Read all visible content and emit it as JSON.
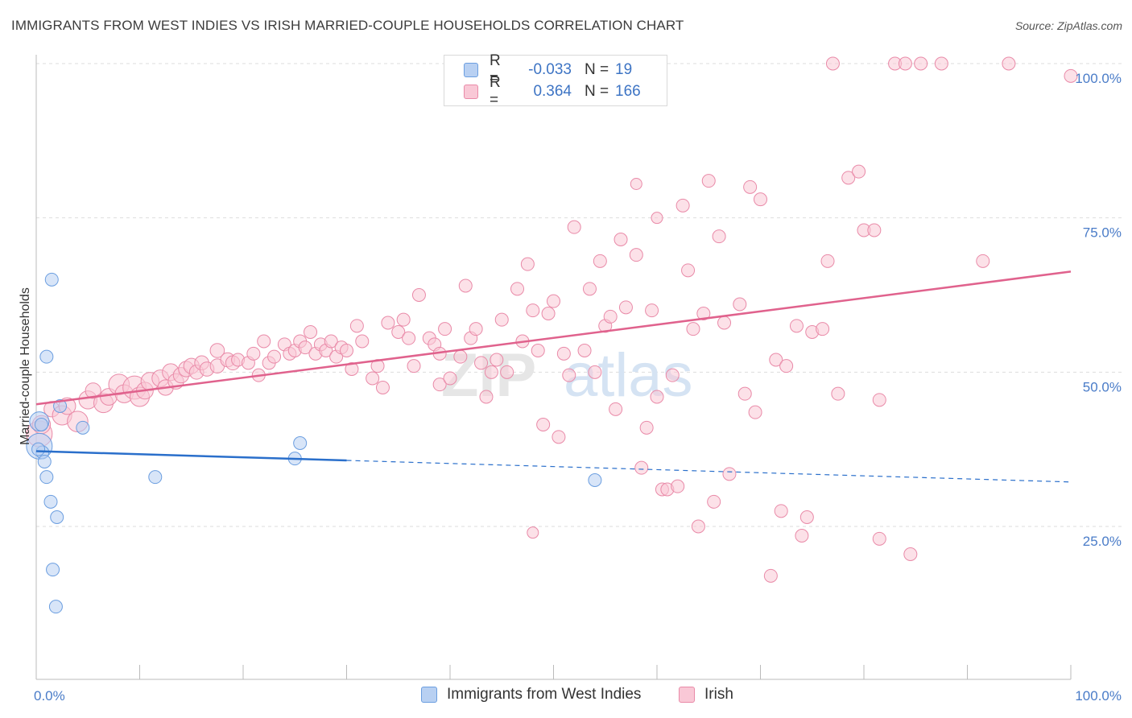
{
  "header": {
    "title": "IMMIGRANTS FROM WEST INDIES VS IRISH MARRIED-COUPLE HOUSEHOLDS CORRELATION CHART",
    "source": "Source: ZipAtlas.com"
  },
  "watermark": {
    "zip": "ZIP",
    "atlas": "atlas"
  },
  "legend_top": {
    "rows": [
      {
        "r_label": "R =",
        "r_value": "-0.033",
        "n_label": "N =",
        "n_value": "19"
      },
      {
        "r_label": "R =",
        "r_value": "0.364",
        "n_label": "N =",
        "n_value": "166"
      }
    ]
  },
  "legend_bottom": {
    "series1": "Immigrants from West Indies",
    "series2": "Irish"
  },
  "colors": {
    "blue_fill": "#b8d0f2",
    "blue_stroke": "#6b9ee0",
    "blue_line": "#2a6fcb",
    "pink_fill": "#f9c8d6",
    "pink_stroke": "#e98aa8",
    "pink_line": "#e0628d",
    "tick_text": "#4a7cc8",
    "grid": "#dddddd"
  },
  "chart_data": {
    "type": "scatter",
    "title": "IMMIGRANTS FROM WEST INDIES VS IRISH MARRIED-COUPLE HOUSEHOLDS CORRELATION CHART",
    "xlabel": "",
    "ylabel": "Married-couple Households",
    "xlim": [
      0,
      100
    ],
    "ylim": [
      0,
      105
    ],
    "x_tick_labels": [
      {
        "value": 0,
        "label": "0.0%"
      },
      {
        "value": 100,
        "label": "100.0%"
      }
    ],
    "y_tick_labels": [
      {
        "value": 25,
        "label": "25.0%"
      },
      {
        "value": 50,
        "label": "50.0%"
      },
      {
        "value": 75,
        "label": "75.0%"
      },
      {
        "value": 100,
        "label": "100.0%"
      }
    ],
    "series": [
      {
        "name": "Immigrants from West Indies",
        "r": -0.033,
        "n": 19,
        "trend": {
          "x_start": 0,
          "y_start": 37.2,
          "x_solid_end": 30,
          "x_end": 100,
          "y_end": 32.2
        },
        "points": [
          [
            0.3,
            38.0,
            2
          ],
          [
            0.3,
            42.0,
            1.5
          ],
          [
            0.5,
            41.5,
            1
          ],
          [
            0.6,
            37.0,
            1
          ],
          [
            0.8,
            35.5,
            1
          ],
          [
            1.0,
            33.0,
            1
          ],
          [
            1.4,
            29.0,
            1
          ],
          [
            1.0,
            52.5,
            1
          ],
          [
            1.5,
            65.0,
            1
          ],
          [
            1.6,
            18.0,
            1
          ],
          [
            2.0,
            26.5,
            1
          ],
          [
            1.9,
            12.0,
            1
          ],
          [
            2.3,
            44.5,
            1
          ],
          [
            4.5,
            41.0,
            1
          ],
          [
            11.5,
            33.0,
            1
          ],
          [
            25.0,
            36.0,
            1
          ],
          [
            25.5,
            38.5,
            1
          ],
          [
            54.0,
            32.5,
            1
          ],
          [
            0.2,
            37.5,
            1
          ]
        ]
      },
      {
        "name": "Irish",
        "r": 0.364,
        "n": 166,
        "trend": {
          "x_start": 0,
          "y_start": 44.8,
          "x_end": 100,
          "y_end": 66.3
        },
        "points": [
          [
            0.3,
            40.0,
            2
          ],
          [
            0.5,
            41.5,
            1.4
          ],
          [
            1.5,
            44.0,
            1.2
          ],
          [
            2.5,
            43.0,
            1.5
          ],
          [
            3.0,
            44.5,
            1.3
          ],
          [
            4.0,
            42.0,
            1.6
          ],
          [
            5.0,
            45.5,
            1.4
          ],
          [
            5.5,
            47.0,
            1.2
          ],
          [
            6.5,
            45.0,
            1.5
          ],
          [
            7.0,
            46.0,
            1.3
          ],
          [
            8.0,
            48.0,
            1.6
          ],
          [
            8.5,
            46.5,
            1.4
          ],
          [
            9.5,
            47.5,
            1.8
          ],
          [
            10.0,
            46.0,
            1.5
          ],
          [
            10.5,
            47.0,
            1.3
          ],
          [
            11.0,
            48.5,
            1.4
          ],
          [
            12.0,
            49.0,
            1.3
          ],
          [
            12.5,
            47.5,
            1.2
          ],
          [
            13.0,
            50.0,
            1.3
          ],
          [
            13.5,
            48.5,
            1.2
          ],
          [
            14.0,
            49.5,
            1.2
          ],
          [
            14.5,
            50.5,
            1.2
          ],
          [
            15.0,
            51.0,
            1.2
          ],
          [
            15.5,
            50.0,
            1.1
          ],
          [
            16.0,
            51.5,
            1.1
          ],
          [
            16.5,
            50.5,
            1.1
          ],
          [
            17.5,
            51.0,
            1.1
          ],
          [
            17.5,
            53.5,
            1.1
          ],
          [
            18.5,
            52.0,
            1.1
          ],
          [
            19.0,
            51.5,
            1.1
          ],
          [
            19.5,
            52.0,
            1
          ],
          [
            20.5,
            51.5,
            1
          ],
          [
            21.0,
            53.0,
            1
          ],
          [
            21.5,
            49.5,
            1
          ],
          [
            22.0,
            55.0,
            1
          ],
          [
            22.5,
            51.5,
            1
          ],
          [
            23.0,
            52.5,
            1
          ],
          [
            24.0,
            54.5,
            1
          ],
          [
            24.5,
            53.0,
            1
          ],
          [
            25.0,
            53.5,
            1
          ],
          [
            25.5,
            55.0,
            1
          ],
          [
            26.0,
            54.0,
            1
          ],
          [
            26.5,
            56.5,
            1
          ],
          [
            27.0,
            53.0,
            1
          ],
          [
            27.5,
            54.5,
            1
          ],
          [
            28.0,
            53.5,
            1
          ],
          [
            28.5,
            55.0,
            1
          ],
          [
            29.0,
            52.5,
            1
          ],
          [
            29.5,
            54.0,
            1
          ],
          [
            30.0,
            53.5,
            1
          ],
          [
            30.5,
            50.5,
            1
          ],
          [
            31.0,
            57.5,
            1
          ],
          [
            31.5,
            55.0,
            1
          ],
          [
            32.5,
            49.0,
            1
          ],
          [
            33.0,
            51.0,
            1
          ],
          [
            33.5,
            47.5,
            1
          ],
          [
            34.0,
            58.0,
            1
          ],
          [
            35.0,
            56.5,
            1
          ],
          [
            35.5,
            58.5,
            1
          ],
          [
            36.0,
            55.5,
            1
          ],
          [
            36.5,
            51.0,
            1
          ],
          [
            37.0,
            62.5,
            1
          ],
          [
            38.0,
            55.5,
            1
          ],
          [
            38.5,
            54.5,
            1
          ],
          [
            39.0,
            53.0,
            1
          ],
          [
            39.0,
            48.0,
            1
          ],
          [
            39.5,
            57.0,
            1
          ],
          [
            40.0,
            49.0,
            1
          ],
          [
            41.0,
            52.5,
            1
          ],
          [
            41.5,
            64.0,
            1
          ],
          [
            42.0,
            55.5,
            1
          ],
          [
            42.5,
            57.0,
            1
          ],
          [
            43.0,
            51.5,
            1
          ],
          [
            43.5,
            46.0,
            1
          ],
          [
            44.0,
            50.0,
            1
          ],
          [
            44.5,
            52.0,
            1
          ],
          [
            45.0,
            58.5,
            1
          ],
          [
            45.5,
            50.0,
            1
          ],
          [
            46.5,
            63.5,
            1
          ],
          [
            47.0,
            55.0,
            1
          ],
          [
            47.5,
            67.5,
            1
          ],
          [
            48.0,
            60.0,
            1
          ],
          [
            48.5,
            53.5,
            1
          ],
          [
            49.0,
            41.5,
            1
          ],
          [
            49.5,
            59.5,
            1
          ],
          [
            50.0,
            61.5,
            1
          ],
          [
            50.5,
            39.5,
            1
          ],
          [
            51.0,
            53.0,
            1
          ],
          [
            51.5,
            49.5,
            1
          ],
          [
            52.0,
            73.5,
            1
          ],
          [
            53.0,
            53.5,
            1
          ],
          [
            53.5,
            63.5,
            1
          ],
          [
            54.0,
            50.0,
            1
          ],
          [
            54.5,
            68.0,
            1
          ],
          [
            55.0,
            57.5,
            1
          ],
          [
            55.5,
            59.0,
            1
          ],
          [
            56.0,
            44.0,
            1
          ],
          [
            56.5,
            71.5,
            1
          ],
          [
            57.0,
            60.5,
            1
          ],
          [
            58.0,
            69.0,
            1
          ],
          [
            58.5,
            34.5,
            1
          ],
          [
            59.0,
            41.0,
            1
          ],
          [
            59.5,
            60.0,
            1
          ],
          [
            60.0,
            46.0,
            1
          ],
          [
            60.5,
            31.0,
            1
          ],
          [
            61.0,
            31.0,
            1
          ],
          [
            61.5,
            49.5,
            1
          ],
          [
            62.0,
            31.5,
            1
          ],
          [
            62.5,
            77.0,
            1
          ],
          [
            63.0,
            66.5,
            1
          ],
          [
            63.5,
            57.0,
            1
          ],
          [
            64.0,
            25.0,
            1
          ],
          [
            64.5,
            59.5,
            1
          ],
          [
            65.0,
            81.0,
            1
          ],
          [
            65.5,
            29.0,
            1
          ],
          [
            66.0,
            72.0,
            1
          ],
          [
            66.5,
            58.0,
            1
          ],
          [
            67.0,
            33.5,
            1
          ],
          [
            68.0,
            61.0,
            1
          ],
          [
            68.5,
            46.5,
            1
          ],
          [
            69.0,
            80.0,
            1
          ],
          [
            69.5,
            43.5,
            1
          ],
          [
            70.0,
            78.0,
            1
          ],
          [
            71.0,
            17.0,
            1
          ],
          [
            71.5,
            52.0,
            1
          ],
          [
            72.0,
            27.5,
            1
          ],
          [
            72.5,
            51.0,
            1
          ],
          [
            73.5,
            57.5,
            1
          ],
          [
            74.0,
            23.5,
            1
          ],
          [
            74.5,
            26.5,
            1
          ],
          [
            75.0,
            56.5,
            1
          ],
          [
            76.0,
            57.0,
            1
          ],
          [
            76.5,
            68.0,
            1
          ],
          [
            77.0,
            100.0,
            1
          ],
          [
            77.5,
            46.5,
            1
          ],
          [
            78.5,
            81.5,
            1
          ],
          [
            79.5,
            82.5,
            1
          ],
          [
            80.0,
            73.0,
            1
          ],
          [
            81.0,
            73.0,
            1
          ],
          [
            81.5,
            45.5,
            1
          ],
          [
            81.5,
            23.0,
            1
          ],
          [
            83.0,
            100.0,
            1
          ],
          [
            84.0,
            100.0,
            1
          ],
          [
            84.5,
            20.5,
            1
          ],
          [
            85.5,
            100.0,
            1
          ],
          [
            87.5,
            100.0,
            1
          ],
          [
            91.5,
            68.0,
            1
          ],
          [
            94.0,
            100.0,
            1
          ],
          [
            100.0,
            98.0,
            1
          ],
          [
            48.0,
            24.0,
            0
          ],
          [
            58.0,
            80.5,
            0
          ],
          [
            60.0,
            75.0,
            0
          ]
        ]
      }
    ]
  }
}
